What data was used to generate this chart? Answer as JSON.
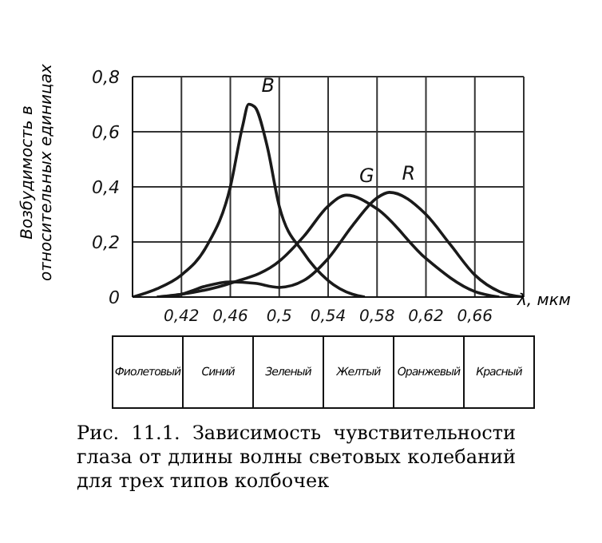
{
  "chart_data": {
    "type": "line",
    "ylabel": "Возбудимость в относительных единицах",
    "xlabel": "λ, мкм",
    "xlim": [
      0.38,
      0.7
    ],
    "ylim": [
      0,
      0.8
    ],
    "xticks": [
      {
        "value": 0.38,
        "label": null
      },
      {
        "value": 0.42,
        "label": "0,42"
      },
      {
        "value": 0.46,
        "label": "0,46"
      },
      {
        "value": 0.5,
        "label": "0,5"
      },
      {
        "value": 0.54,
        "label": "0,54"
      },
      {
        "value": 0.58,
        "label": "0,58"
      },
      {
        "value": 0.62,
        "label": "0,62"
      },
      {
        "value": 0.66,
        "label": "0,66"
      },
      {
        "value": 0.7,
        "label": null
      }
    ],
    "yticks": [
      {
        "value": 0,
        "label": "0"
      },
      {
        "value": 0.2,
        "label": "0,2"
      },
      {
        "value": 0.4,
        "label": "0,4"
      },
      {
        "value": 0.6,
        "label": "0,6"
      },
      {
        "value": 0.8,
        "label": "0,8"
      }
    ],
    "grid": true,
    "legend": false,
    "marker": "none",
    "line_style": "solid",
    "series": [
      {
        "name": "B",
        "color": "#1a1a1a",
        "x": [
          0.38,
          0.4,
          0.42,
          0.44,
          0.46,
          0.47,
          0.475,
          0.48,
          0.49,
          0.5,
          0.52,
          0.54,
          0.56,
          0.57
        ],
        "values": [
          0,
          0.03,
          0.08,
          0.18,
          0.4,
          0.62,
          0.7,
          0.69,
          0.55,
          0.33,
          0.16,
          0.06,
          0.01,
          0
        ]
      },
      {
        "name": "G",
        "color": "#1a1a1a",
        "x": [
          0.4,
          0.42,
          0.46,
          0.5,
          0.52,
          0.54,
          0.555,
          0.58,
          0.62,
          0.66,
          0.68
        ],
        "values": [
          0,
          0.01,
          0.05,
          0.13,
          0.22,
          0.33,
          0.37,
          0.32,
          0.14,
          0.02,
          0
        ]
      },
      {
        "name": "R",
        "color": "#1a1a1a",
        "x": [
          0.4,
          0.42,
          0.44,
          0.46,
          0.48,
          0.5,
          0.52,
          0.54,
          0.56,
          0.58,
          0.59,
          0.62,
          0.64,
          0.66,
          0.68,
          0.7
        ],
        "values": [
          0,
          0.01,
          0.04,
          0.055,
          0.05,
          0.035,
          0.06,
          0.14,
          0.26,
          0.36,
          0.38,
          0.3,
          0.19,
          0.08,
          0.02,
          0
        ]
      }
    ],
    "annotations": [
      "Фиолетовый",
      "Синий",
      "Зеленый",
      "Желтый",
      "Оранжевый",
      "Красный",
      "Рис. 11.1. Зависимость чувствительности глаза от длины волны световых колебаний для трех типов колбочек"
    ]
  }
}
